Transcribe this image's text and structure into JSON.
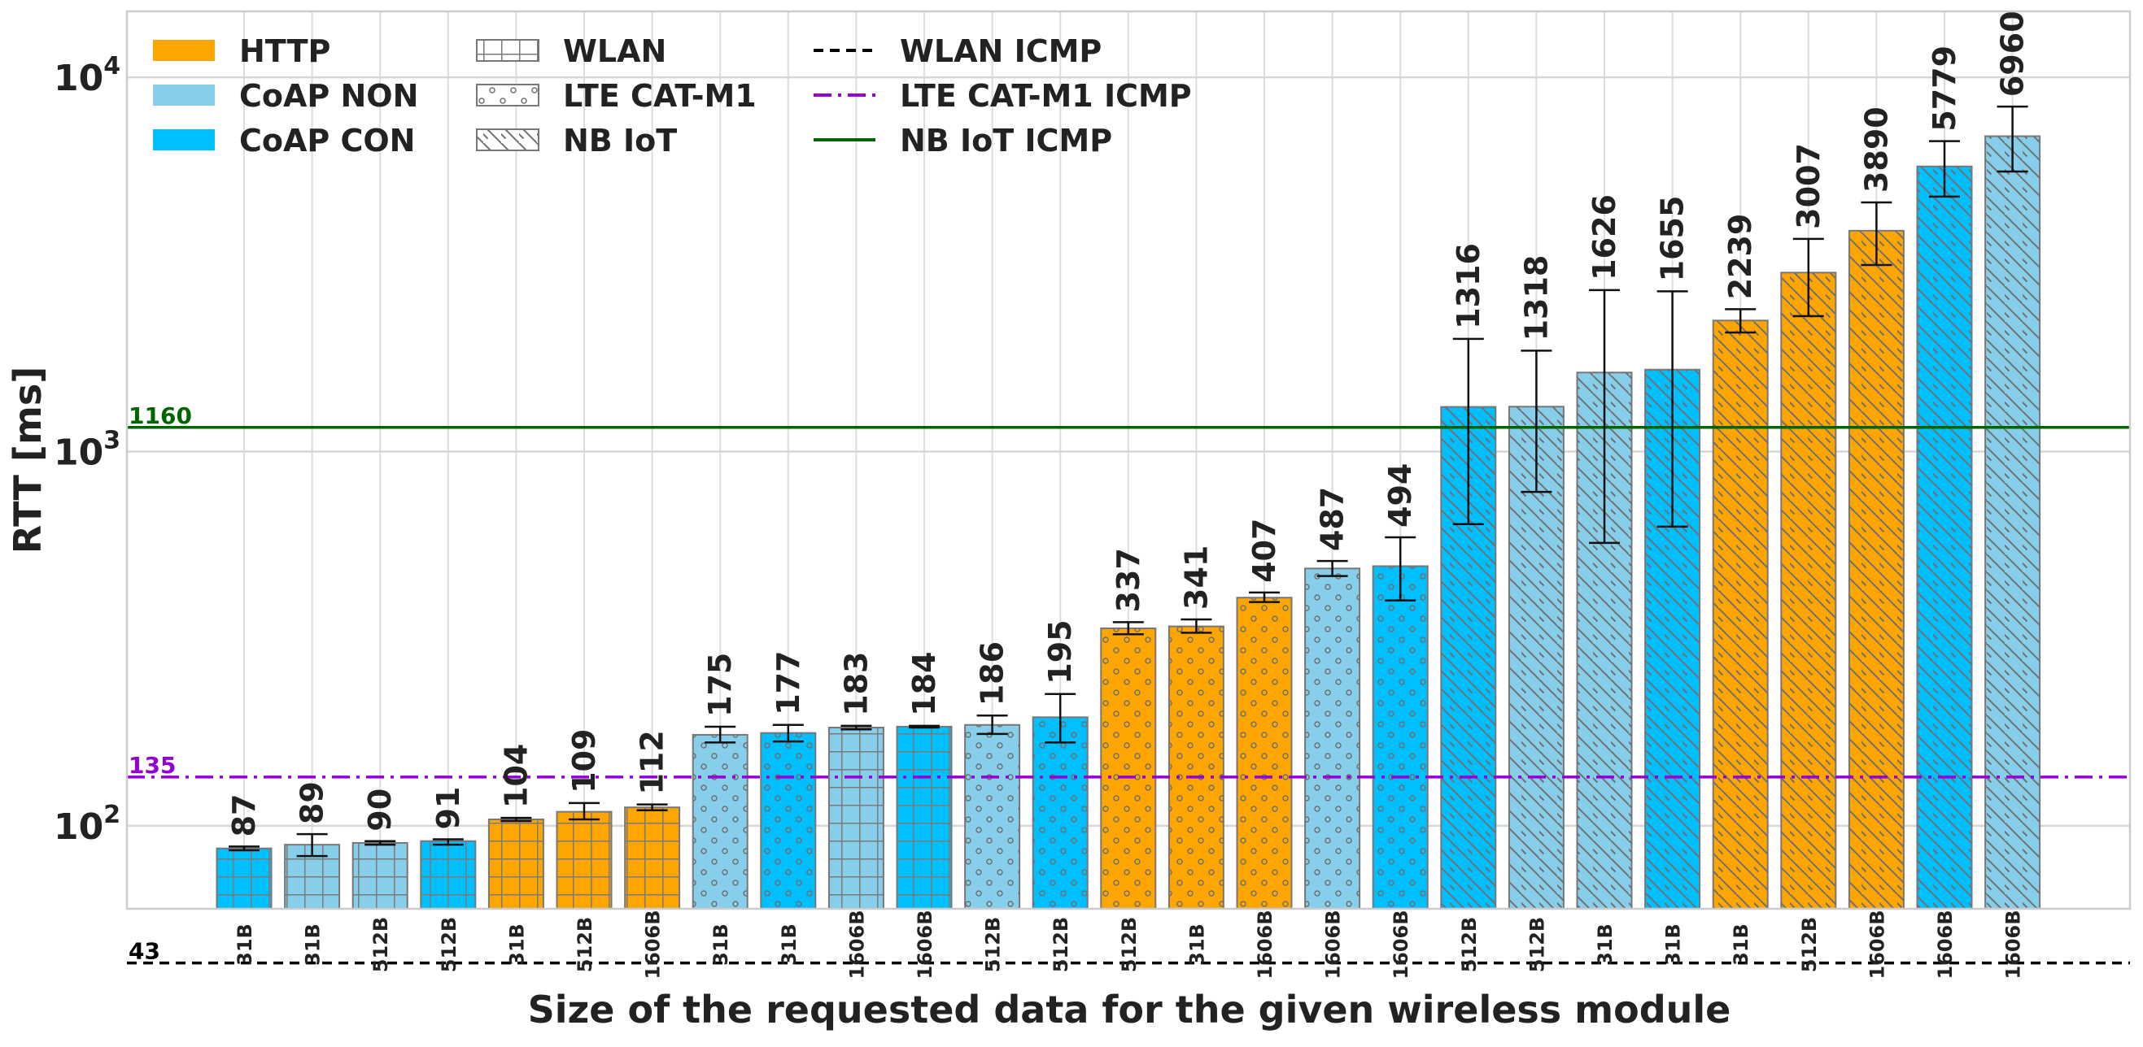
{
  "chart_data": {
    "type": "bar",
    "xlabel": "Size of the requested data for the given wireless module",
    "ylabel": "RTT [ms]",
    "yscale": "log",
    "ylim": [
      60,
      15000
    ],
    "grid": true,
    "legend_position": "top-left",
    "y_ticks": [
      {
        "value": 100,
        "base": "10",
        "exp": "2"
      },
      {
        "value": 1000,
        "base": "10",
        "exp": "3"
      },
      {
        "value": 10000,
        "base": "10",
        "exp": "4"
      }
    ],
    "protocols": [
      {
        "name": "HTTP",
        "color": "#FFA500"
      },
      {
        "name": "CoAP NON",
        "color": "#87CEEB"
      },
      {
        "name": "CoAP CON",
        "color": "#00BFFF"
      }
    ],
    "modules": [
      {
        "name": "WLAN",
        "pattern": "grid"
      },
      {
        "name": "LTE CAT-M1",
        "pattern": "dots"
      },
      {
        "name": "NB IoT",
        "pattern": "hatch"
      }
    ],
    "reference_lines": [
      {
        "name": "WLAN ICMP",
        "value": 43,
        "label": "43",
        "color": "#000000",
        "style": "dashed"
      },
      {
        "name": "LTE CAT-M1 ICMP",
        "value": 135,
        "label": "135",
        "color": "#9400D3",
        "style": "dashdot"
      },
      {
        "name": "NB IoT ICMP",
        "value": 1160,
        "label": "1160",
        "color": "#006400",
        "style": "solid"
      }
    ],
    "bars": [
      {
        "category": "31B",
        "protocol": "CoAP CON",
        "module": "WLAN",
        "value": 87,
        "label": "87",
        "err": [
          86,
          88
        ]
      },
      {
        "category": "31B",
        "protocol": "CoAP NON",
        "module": "WLAN",
        "value": 89,
        "label": "89",
        "err": [
          83,
          95
        ]
      },
      {
        "category": "512B",
        "protocol": "CoAP NON",
        "module": "WLAN",
        "value": 90,
        "label": "90",
        "err": [
          89,
          91
        ]
      },
      {
        "category": "512B",
        "protocol": "CoAP CON",
        "module": "WLAN",
        "value": 91,
        "label": "91",
        "err": [
          89,
          92
        ]
      },
      {
        "category": "31B",
        "protocol": "HTTP",
        "module": "WLAN",
        "value": 104,
        "label": "104",
        "err": [
          103,
          105
        ]
      },
      {
        "category": "512B",
        "protocol": "HTTP",
        "module": "WLAN",
        "value": 109,
        "label": "109",
        "err": [
          104,
          115
        ]
      },
      {
        "category": "1606B",
        "protocol": "HTTP",
        "module": "WLAN",
        "value": 112,
        "label": "112",
        "err": [
          110,
          114
        ]
      },
      {
        "category": "31B",
        "protocol": "CoAP NON",
        "module": "LTE CAT-M1",
        "value": 175,
        "label": "175",
        "err": [
          167,
          184
        ]
      },
      {
        "category": "31B",
        "protocol": "CoAP CON",
        "module": "LTE CAT-M1",
        "value": 177,
        "label": "177",
        "err": [
          168,
          186
        ]
      },
      {
        "category": "1606B",
        "protocol": "CoAP NON",
        "module": "WLAN",
        "value": 183,
        "label": "183",
        "err": [
          181,
          185
        ]
      },
      {
        "category": "1606B",
        "protocol": "CoAP CON",
        "module": "WLAN",
        "value": 184,
        "label": "184",
        "err": [
          183,
          185
        ]
      },
      {
        "category": "512B",
        "protocol": "CoAP NON",
        "module": "LTE CAT-M1",
        "value": 186,
        "label": "186",
        "err": [
          176,
          197
        ]
      },
      {
        "category": "512B",
        "protocol": "CoAP CON",
        "module": "LTE CAT-M1",
        "value": 195,
        "label": "195",
        "err": [
          167,
          225
        ]
      },
      {
        "category": "512B",
        "protocol": "HTTP",
        "module": "LTE CAT-M1",
        "value": 337,
        "label": "337",
        "err": [
          325,
          350
        ]
      },
      {
        "category": "31B",
        "protocol": "HTTP",
        "module": "LTE CAT-M1",
        "value": 341,
        "label": "341",
        "err": [
          328,
          356
        ]
      },
      {
        "category": "1606B",
        "protocol": "HTTP",
        "module": "LTE CAT-M1",
        "value": 407,
        "label": "407",
        "err": [
          396,
          420
        ]
      },
      {
        "category": "1606B",
        "protocol": "CoAP NON",
        "module": "LTE CAT-M1",
        "value": 487,
        "label": "487",
        "err": [
          465,
          510
        ]
      },
      {
        "category": "1606B",
        "protocol": "CoAP CON",
        "module": "LTE CAT-M1",
        "value": 494,
        "label": "494",
        "err": [
          400,
          590
        ]
      },
      {
        "category": "512B",
        "protocol": "CoAP CON",
        "module": "NB IoT",
        "value": 1316,
        "label": "1316",
        "err": [
          640,
          2000
        ]
      },
      {
        "category": "512B",
        "protocol": "CoAP NON",
        "module": "NB IoT",
        "value": 1318,
        "label": "1318",
        "err": [
          780,
          1860
        ]
      },
      {
        "category": "31B",
        "protocol": "CoAP NON",
        "module": "NB IoT",
        "value": 1626,
        "label": "1626",
        "err": [
          570,
          2700
        ]
      },
      {
        "category": "31B",
        "protocol": "CoAP CON",
        "module": "NB IoT",
        "value": 1655,
        "label": "1655",
        "err": [
          630,
          2680
        ]
      },
      {
        "category": "31B",
        "protocol": "HTTP",
        "module": "NB IoT",
        "value": 2239,
        "label": "2239",
        "err": [
          2080,
          2400
        ]
      },
      {
        "category": "512B",
        "protocol": "HTTP",
        "module": "NB IoT",
        "value": 3007,
        "label": "3007",
        "err": [
          2300,
          3700
        ]
      },
      {
        "category": "1606B",
        "protocol": "HTTP",
        "module": "NB IoT",
        "value": 3890,
        "label": "3890",
        "err": [
          3150,
          4630
        ]
      },
      {
        "category": "1606B",
        "protocol": "CoAP CON",
        "module": "NB IoT",
        "value": 5779,
        "label": "5779",
        "err": [
          4800,
          6750
        ]
      },
      {
        "category": "1606B",
        "protocol": "CoAP NON",
        "module": "NB IoT",
        "value": 6960,
        "label": "6960",
        "err": [
          5600,
          8350
        ]
      }
    ]
  }
}
